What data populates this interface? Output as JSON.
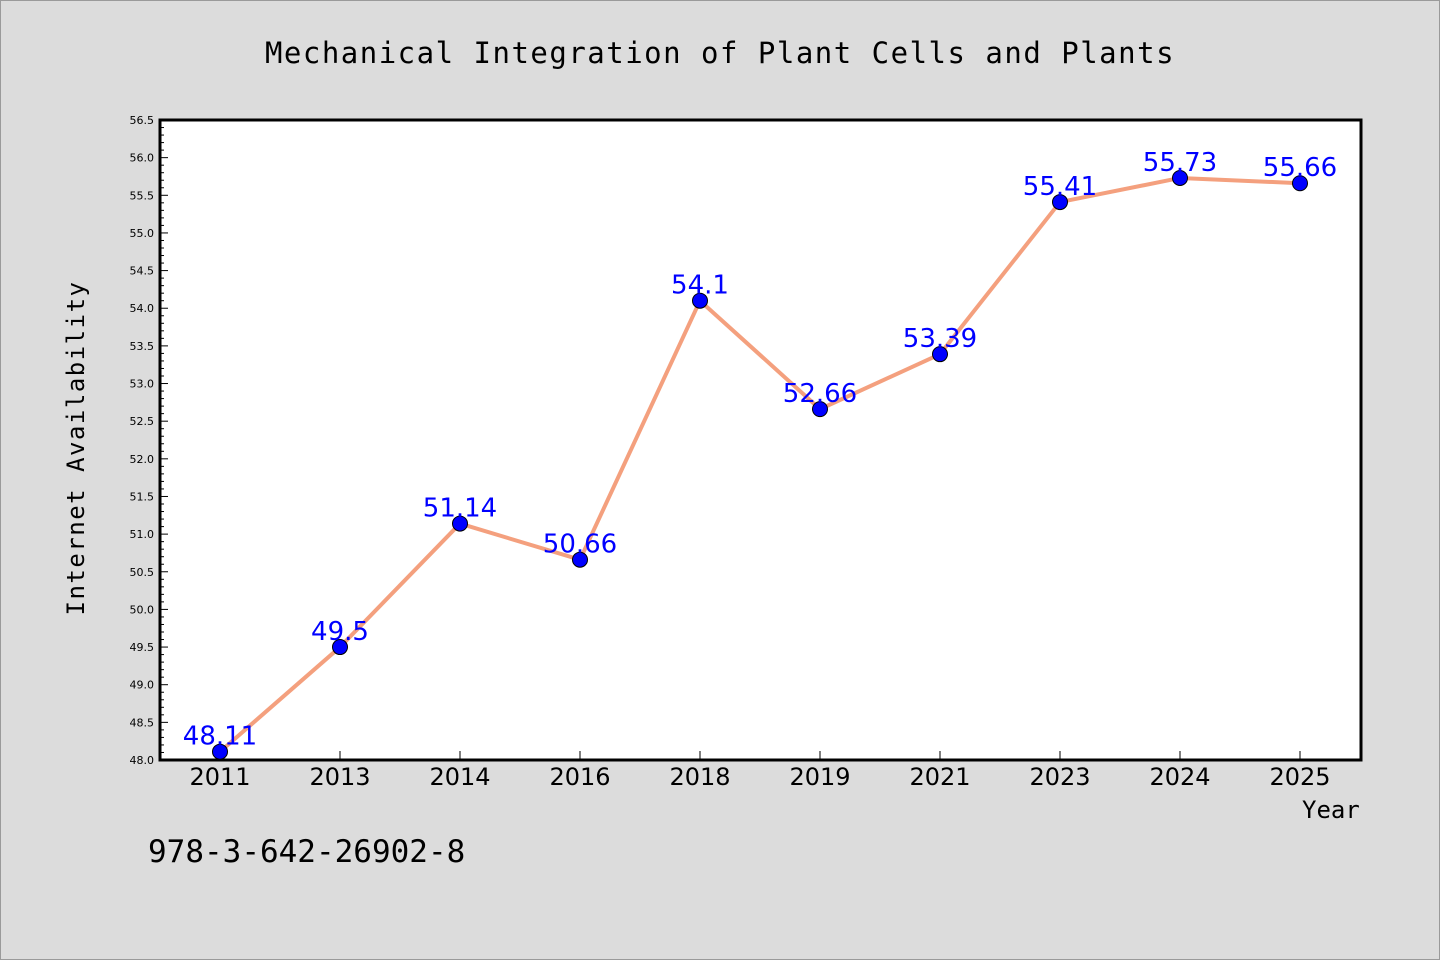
{
  "chart_data": {
    "type": "line",
    "title": "Mechanical Integration of Plant Cells and Plants",
    "xlabel": "Year",
    "ylabel": "Internet Availability",
    "categories": [
      "2011",
      "2013",
      "2014",
      "2016",
      "2018",
      "2019",
      "2021",
      "2023",
      "2024",
      "2025"
    ],
    "series": [
      {
        "values": [
          48.11,
          49.5,
          51.14,
          50.66,
          54.1,
          52.66,
          53.39,
          55.41,
          55.73,
          55.66
        ],
        "labels": [
          "48.11",
          "49.5",
          "51.14",
          "50.66",
          "54.1",
          "52.66",
          "53.39",
          "55.41",
          "55.73",
          "55.66"
        ]
      }
    ],
    "ylim": [
      48.0,
      56.5
    ],
    "yticks": [
      "48.0",
      "48.5",
      "49.0",
      "49.5",
      "50.0",
      "50.5",
      "51.0",
      "51.5",
      "52.0",
      "52.5",
      "53.0",
      "53.5",
      "54.0",
      "54.5",
      "55.0",
      "55.5",
      "56.0",
      "56.5"
    ],
    "grid": false,
    "colors": {
      "line": "#f4a07e",
      "marker": "#0000ff",
      "label": "#0000ff",
      "plot_bg": "#ffffff",
      "figure_bg": "#dcdcdc"
    }
  },
  "footer": {
    "code": "978-3-642-26902-8"
  }
}
